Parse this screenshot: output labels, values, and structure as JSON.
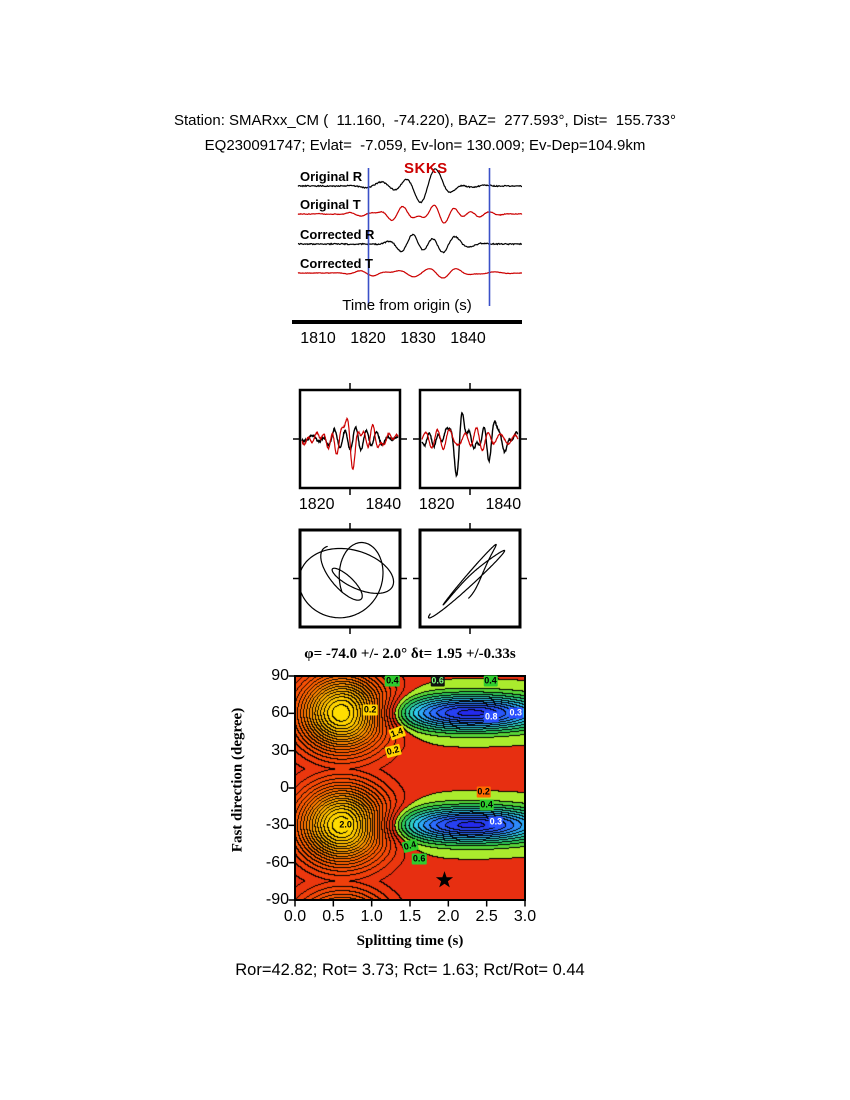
{
  "header": {
    "line1": "Station: SMARxx_CM (  11.160,  -74.220), BAZ=  277.593°, Dist=  155.733°",
    "line2": "EQ230091747; Evlat=  -7.059, Ev-lon= 130.009; Ev-Dep=104.9km"
  },
  "station_info": {
    "station": "SMARxx_CM",
    "lat": 11.16,
    "lon": -74.22,
    "baz_deg": 277.593,
    "dist_deg": 155.733,
    "event_id": "EQ230091747",
    "ev_lat": -7.059,
    "ev_lon": 130.009,
    "ev_depth": "104.9km"
  },
  "waveform_panel": {
    "phase_label": "SKKS",
    "axis_label": "Time from origin (s)",
    "traces": [
      {
        "label": "Original R",
        "color": "#000000"
      },
      {
        "label": "Original T",
        "color": "#cc0000"
      },
      {
        "label": "Corrected R",
        "color": "#000000"
      },
      {
        "label": "Corrected T",
        "color": "#cc0000"
      }
    ],
    "x_ticks": [
      "1810",
      "1820",
      "1830",
      "1840"
    ],
    "window": {
      "start": 1820,
      "end": 1844,
      "color": "#3a50c8"
    }
  },
  "zoom_panels": [
    {
      "x_ticks": [
        "1820",
        "1840"
      ]
    },
    {
      "x_ticks": [
        "1820",
        "1840"
      ]
    }
  ],
  "chart_data": {
    "type": "contour",
    "title": "φ= -74.0 +/- 2.0° δt= 1.95 +/-0.33s",
    "xlabel": "Splitting time (s)",
    "ylabel": "Fast direction (degree)",
    "xlim": [
      0.0,
      3.0
    ],
    "ylim": [
      -90,
      90
    ],
    "x_ticks": [
      "0.0",
      "0.5",
      "1.0",
      "1.5",
      "2.0",
      "2.5",
      "3.0"
    ],
    "y_ticks": [
      "90",
      "60",
      "30",
      "0",
      "-30",
      "-60",
      "-90"
    ],
    "grid": false,
    "best_solution": {
      "fast_direction_deg": -74.0,
      "fast_direction_err_deg": 2.0,
      "delay_time_s": 1.95,
      "delay_time_err_s": 0.33
    },
    "star_marker": {
      "x": 1.95,
      "y": -74
    },
    "contour_labels": [
      {
        "text": "0.4",
        "x": 1.27,
        "y": 86,
        "bg": "#2ecc2e",
        "fg": "#000000",
        "rot": 0
      },
      {
        "text": "0.6",
        "x": 1.86,
        "y": 86,
        "bg": "#101010",
        "fg": "#7dff7d",
        "rot": 0
      },
      {
        "text": "0.4",
        "x": 2.55,
        "y": 86,
        "bg": "#2ecc2e",
        "fg": "#000000",
        "rot": 0
      },
      {
        "text": "0.2",
        "x": 0.98,
        "y": 63,
        "bg": "#ffd400",
        "fg": "#000000",
        "rot": 0
      },
      {
        "text": "0.8",
        "x": 2.56,
        "y": 57,
        "bg": "#2b50ff",
        "fg": "#ffffff",
        "rot": 0
      },
      {
        "text": "0.3",
        "x": 2.88,
        "y": 60,
        "bg": "#2b50ff",
        "fg": "#ffffff",
        "rot": 0
      },
      {
        "text": "1.4",
        "x": 1.33,
        "y": 44,
        "bg": "#ffd400",
        "fg": "#000000",
        "rot": -20
      },
      {
        "text": "0.2",
        "x": 1.28,
        "y": 30,
        "bg": "#ffd400",
        "fg": "#000000",
        "rot": -15
      },
      {
        "text": "0.2",
        "x": 2.46,
        "y": -3,
        "bg": "#ff6a00",
        "fg": "#000000",
        "rot": 0
      },
      {
        "text": "0.4",
        "x": 2.5,
        "y": -14,
        "bg": "#2ecc2e",
        "fg": "#000000",
        "rot": 0
      },
      {
        "text": "0.3",
        "x": 2.62,
        "y": -27,
        "bg": "#2b50ff",
        "fg": "#ffffff",
        "rot": 0
      },
      {
        "text": "2.0",
        "x": 0.66,
        "y": -30,
        "bg": "#ffd400",
        "fg": "#000000",
        "rot": 0
      },
      {
        "text": "0.4",
        "x": 1.5,
        "y": -47,
        "bg": "#2ecc2e",
        "fg": "#000000",
        "rot": -15
      },
      {
        "text": "0.6",
        "x": 1.62,
        "y": -57,
        "bg": "#2ecc2e",
        "fg": "#000000",
        "rot": 0
      }
    ]
  },
  "footer": {
    "text": "Ror=42.82; Rot= 3.73; Rct= 1.63; Rct/Rot= 0.44",
    "values": {
      "Ror": 42.82,
      "Rot": 3.73,
      "Rct": 1.63,
      "Rct_over_Rot": 0.44
    }
  }
}
